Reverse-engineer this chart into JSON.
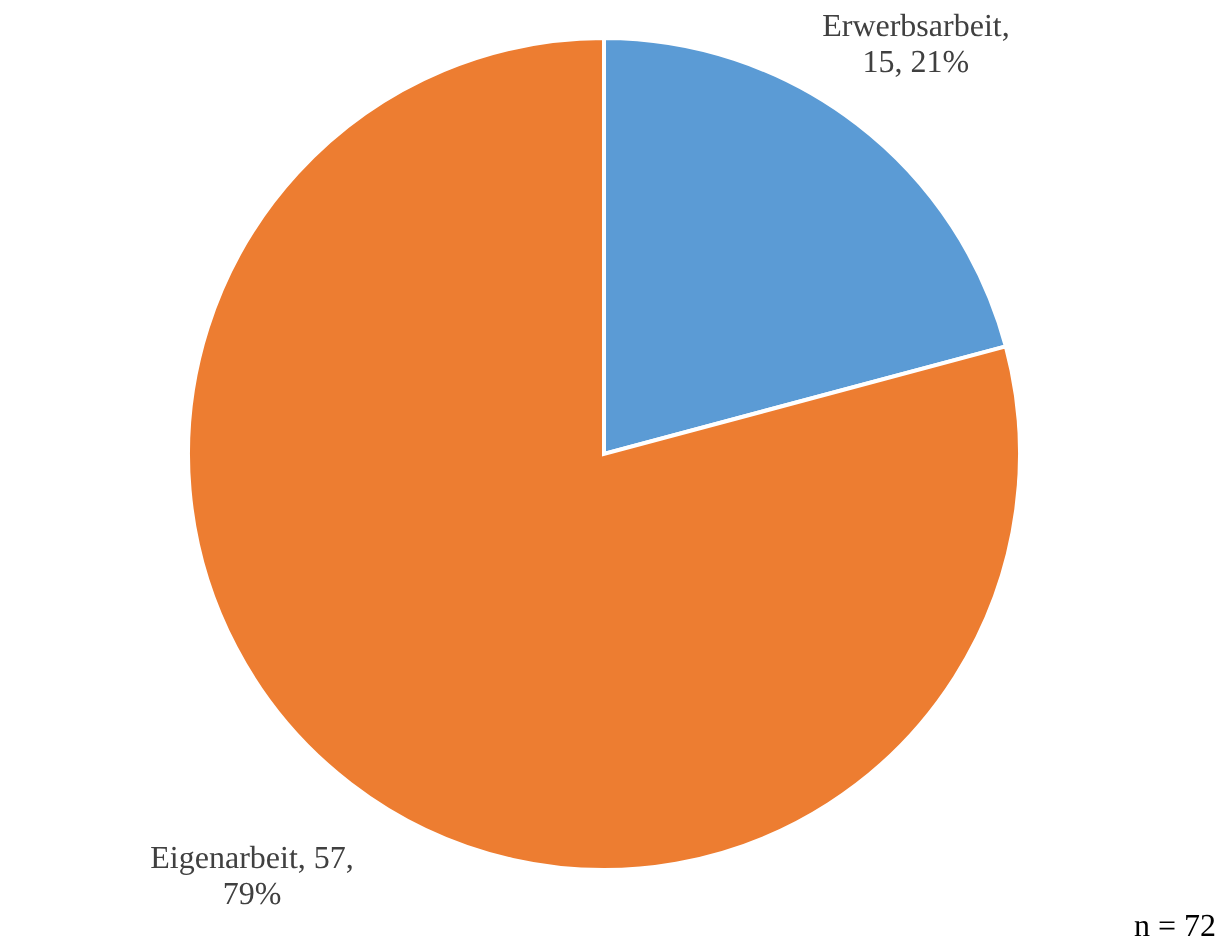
{
  "chart_data": {
    "type": "pie",
    "categories": [
      "Erwerbsarbeit",
      "Eigenarbeit"
    ],
    "values": [
      15,
      57
    ],
    "colors": [
      "#5b9bd5",
      "#ed7d31"
    ],
    "value_labels": [
      ", 15, 21%",
      ", 57, 79%"
    ],
    "annotations": [
      "n = 72"
    ]
  }
}
